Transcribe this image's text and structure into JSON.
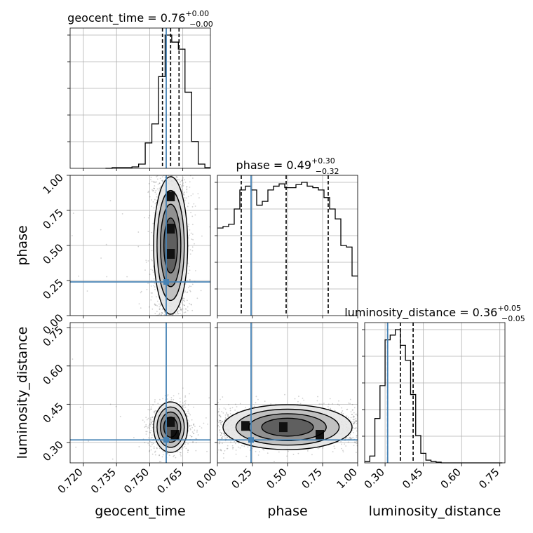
{
  "chart_data": {
    "type": "corner",
    "parameters": [
      "geocent_time",
      "phase",
      "luminosity_distance"
    ],
    "axis_labels": [
      "geocent_time",
      "phase",
      "luminosity_distance"
    ],
    "ranges": [
      [
        0.714,
        0.7775
      ],
      [
        0.0,
        1.0
      ],
      [
        0.22,
        0.77
      ]
    ],
    "ticks": [
      [
        "0.720",
        "0.735",
        "0.750",
        "0.765"
      ],
      [
        "0.00",
        "0.25",
        "0.50",
        "0.75",
        "1.00"
      ],
      [
        "0.30",
        "0.45",
        "0.60",
        "0.75"
      ]
    ],
    "tick_values": [
      [
        0.72,
        0.735,
        0.75,
        0.765
      ],
      [
        0.0,
        0.25,
        0.5,
        0.75,
        1.0
      ],
      [
        0.3,
        0.45,
        0.6,
        0.75
      ]
    ],
    "truths": [
      0.7575,
      0.24,
      0.31
    ],
    "truth_color": "#4682b4",
    "titles": [
      {
        "param": "geocent_time",
        "median": "0.76",
        "plus": "+0.00",
        "minus": "−0.00",
        "prefix": "geocent_time = "
      },
      {
        "param": "phase",
        "median": "0.49",
        "plus": "+0.30",
        "minus": "−0.32",
        "prefix": "phase = "
      },
      {
        "param": "luminosity_distance",
        "median": "0.36",
        "plus": "+0.05",
        "minus": "−0.05",
        "prefix": "luminosity_distance = "
      }
    ],
    "quantiles": [
      [
        0.7558,
        0.7595,
        0.7633
      ],
      [
        0.17,
        0.49,
        0.79
      ],
      [
        0.31,
        0.36,
        0.41
      ]
    ],
    "histograms": [
      {
        "bins": [
          0.73,
          0.733,
          0.736,
          0.739,
          0.742,
          0.745,
          0.748,
          0.751,
          0.754,
          0.757,
          0.76,
          0.763,
          0.766,
          0.769,
          0.772,
          0.775,
          0.778
        ],
        "counts": [
          0,
          1,
          1,
          1,
          2,
          6,
          36,
          63,
          130,
          189,
          179,
          169,
          108,
          38,
          6,
          1
        ]
      },
      {
        "bins": [
          0.0,
          0.04,
          0.08,
          0.12,
          0.16,
          0.2,
          0.24,
          0.28,
          0.32,
          0.36,
          0.4,
          0.44,
          0.48,
          0.52,
          0.56,
          0.6,
          0.64,
          0.68,
          0.72,
          0.76,
          0.8,
          0.84,
          0.88,
          0.92,
          0.96,
          1.0
        ],
        "counts": [
          115,
          117,
          120,
          140,
          165,
          170,
          165,
          145,
          150,
          165,
          170,
          173,
          168,
          168,
          172,
          175,
          170,
          168,
          165,
          155,
          140,
          127,
          92,
          90,
          52
        ]
      },
      {
        "bins": [
          0.22,
          0.24,
          0.26,
          0.28,
          0.3,
          0.32,
          0.34,
          0.36,
          0.38,
          0.4,
          0.42,
          0.44,
          0.46,
          0.48,
          0.5,
          0.52,
          0.54,
          0.56,
          0.58,
          0.6,
          0.62,
          0.64,
          0.66,
          0.68,
          0.7,
          0.72,
          0.74,
          0.76
        ],
        "counts": [
          2,
          10,
          65,
          113,
          180,
          187,
          195,
          172,
          150,
          100,
          40,
          14,
          4,
          2,
          1,
          0,
          0,
          0,
          0,
          0,
          0,
          0,
          0,
          0,
          0,
          0,
          0
        ]
      }
    ],
    "density_centers": {
      "geocent_time_phase": {
        "x": 0.7595,
        "y": 0.5,
        "sx": 0.0035,
        "sy": 0.29
      },
      "geocent_time_luminosity_distance": {
        "x": 0.7595,
        "y": 0.36,
        "sx": 0.0035,
        "sy": 0.045
      },
      "phase_luminosity_distance": {
        "x": 0.5,
        "y": 0.36,
        "sx": 0.29,
        "sy": 0.04
      }
    }
  }
}
